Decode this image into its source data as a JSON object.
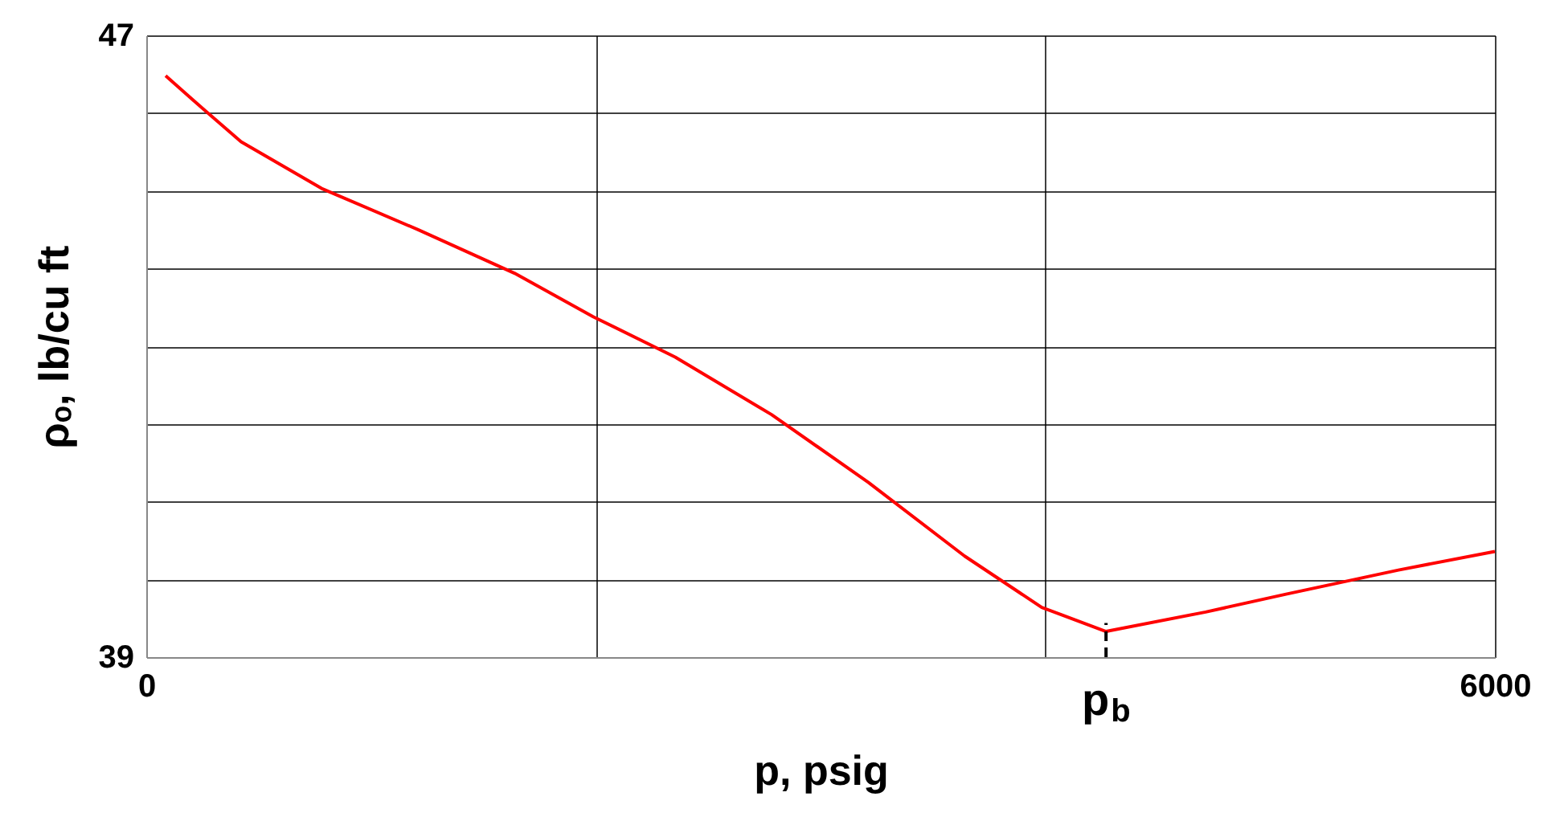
{
  "chart_data": {
    "type": "line",
    "xlabel": "p, psig",
    "ylabel": "ρₒ, lb/cu ft",
    "x": [
      86,
      207,
      422,
      780,
      1209,
      1638,
      1988,
      2353,
      2782,
      3212,
      3641,
      3984,
      4270,
      4713,
      5071,
      5571,
      6000
    ],
    "series": [
      {
        "color": "#ff0000",
        "values": [
          46.48,
          46.17,
          45.63,
          45.03,
          44.5,
          43.94,
          43.38,
          42.86,
          42.12,
          41.25,
          40.3,
          39.64,
          39.33,
          39.58,
          39.81,
          40.12,
          40.36
        ]
      }
    ],
    "xlim": [
      0,
      6000
    ],
    "xticks": [
      0,
      {
        "value": 2000,
        "label": null
      },
      {
        "value": 4000,
        "label": null
      },
      6000
    ],
    "ylim": [
      39,
      47
    ],
    "yticks": [
      39,
      {
        "value": 40,
        "label": null
      },
      {
        "value": 41,
        "label": null
      },
      {
        "value": 42,
        "label": null
      },
      {
        "value": 43,
        "label": null
      },
      {
        "value": 44,
        "label": null
      },
      {
        "value": 45,
        "label": null
      },
      {
        "value": 46,
        "label": null
      },
      47
    ],
    "ref_lines": [
      {
        "axis": "x",
        "value": 4270,
        "label": "p$_{b}$",
        "line_style": "dashed",
        "color": "#000000"
      }
    ],
    "grid": true,
    "marker": "none",
    "line_style": "solid"
  }
}
